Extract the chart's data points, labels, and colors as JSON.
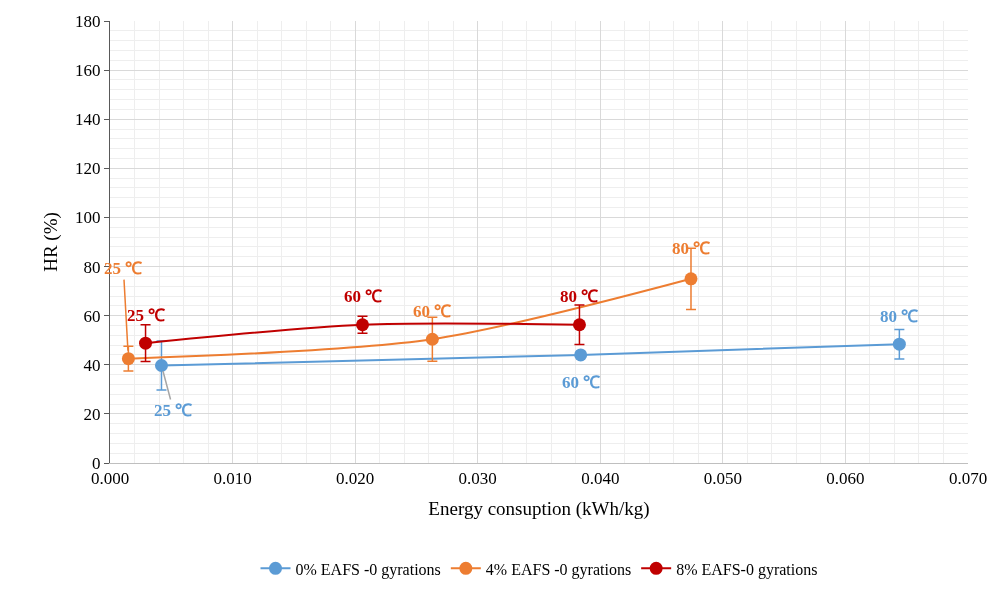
{
  "chart_data": {
    "type": "line",
    "xlabel": "Energy consuption (kWh/kg)",
    "ylabel": "HR (%)",
    "xlim": [
      0,
      0.07
    ],
    "xticks": [
      {
        "value": 0,
        "label": "0.000"
      },
      {
        "value": 0.01,
        "label": "0.010"
      },
      {
        "value": 0.02,
        "label": "0.020"
      },
      {
        "value": 0.03,
        "label": "0.030"
      },
      {
        "value": 0.04,
        "label": "0.040"
      },
      {
        "value": 0.05,
        "label": "0.050"
      },
      {
        "value": 0.06,
        "label": "0.060"
      },
      {
        "value": 0.07,
        "label": "0.070"
      }
    ],
    "ylim": [
      0,
      180
    ],
    "yticks": [
      0,
      20,
      40,
      60,
      80,
      100,
      120,
      140,
      160,
      180
    ],
    "grid": true,
    "legend": "bottom",
    "marker": "circle",
    "line_style": "solid",
    "series": [
      {
        "name": "0% EAFS -0 gyrations",
        "color": "#5b9bd5",
        "x": [
          0.0042,
          0.0384,
          0.0644
        ],
        "values": [
          39.7,
          44,
          48.4
        ],
        "errors": [
          10,
          1,
          6
        ]
      },
      {
        "name": "4% EAFS -0 gyrations",
        "color": "#ed7d31",
        "x": [
          0.0015,
          0.0263,
          0.0474
        ],
        "values": [
          42.5,
          50.4,
          75
        ],
        "errors": [
          5,
          9,
          12.5
        ]
      },
      {
        "name": "8% EAFS-0 gyrations",
        "color": "#c00000",
        "x": [
          0.0029,
          0.0206,
          0.0383
        ],
        "values": [
          48.8,
          56.3,
          56.3
        ],
        "errors": [
          7.5,
          3.5,
          8
        ]
      }
    ],
    "annotations": [
      {
        "text": "25 ℃",
        "x": 0.0042,
        "y": 39.7
      },
      {
        "text": "60 ℃",
        "x": 0.0384,
        "y": 44
      },
      {
        "text": "80 ℃",
        "x": 0.0644,
        "y": 48.4
      },
      {
        "text": "25 ℃",
        "x": 0.0015,
        "y": 42.5
      },
      {
        "text": "60 ℃",
        "x": 0.0263,
        "y": 50.4
      },
      {
        "text": "80 ℃",
        "x": 0.0474,
        "y": 75
      },
      {
        "text": "25 ℃",
        "x": 0.0029,
        "y": 48.8
      },
      {
        "text": "60 ℃",
        "x": 0.0206,
        "y": 56.3
      },
      {
        "text": "80 ℃",
        "x": 0.0383,
        "y": 56.3
      }
    ]
  }
}
